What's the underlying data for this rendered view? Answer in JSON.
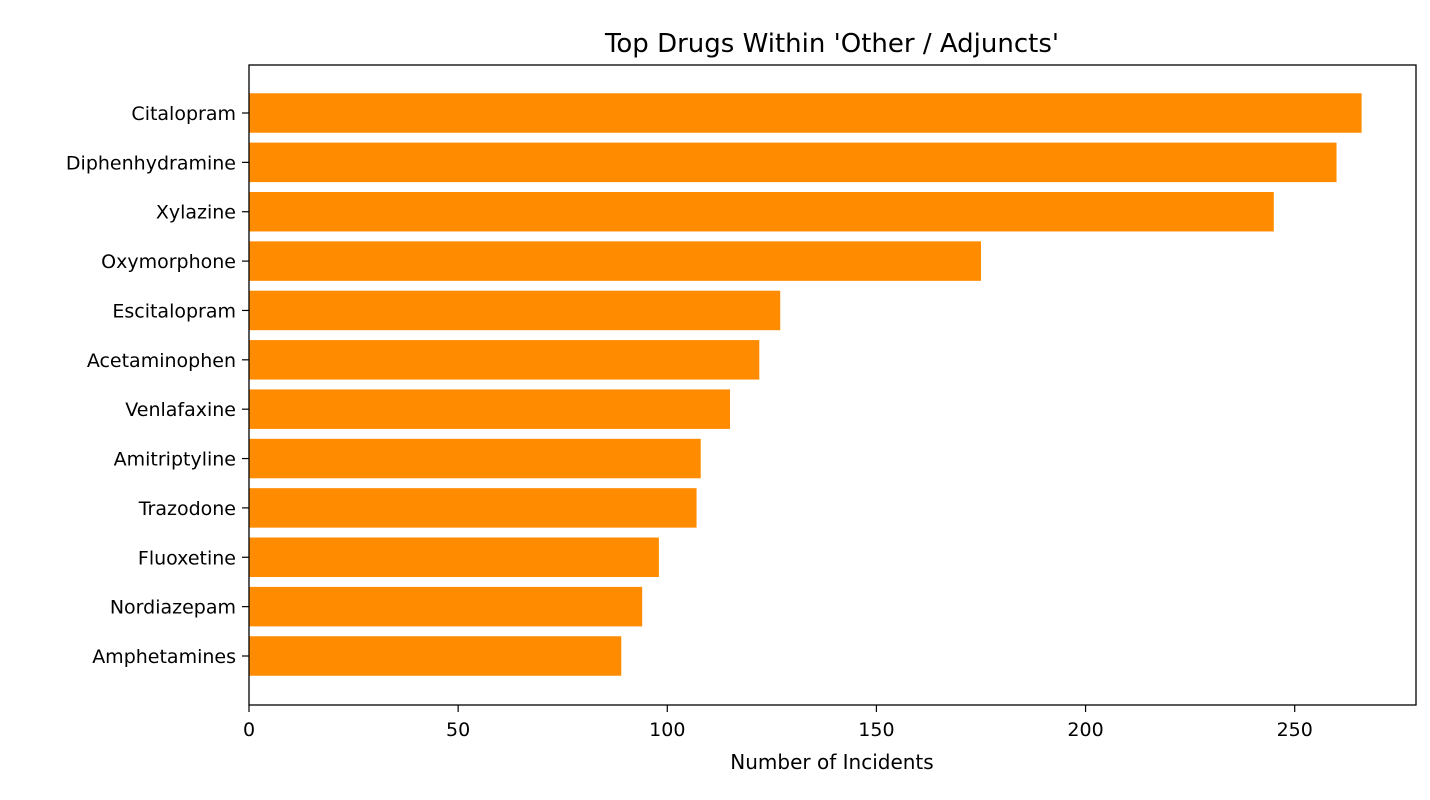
{
  "chart_data": {
    "type": "bar",
    "orientation": "horizontal",
    "title": "Top Drugs Within 'Other / Adjuncts'",
    "xlabel": "Number of Incidents",
    "ylabel": "",
    "categories": [
      "Citalopram",
      "Diphenhydramine",
      "Xylazine",
      "Oxymorphone",
      "Escitalopram",
      "Acetaminophen",
      "Venlafaxine",
      "Amitriptyline",
      "Trazodone",
      "Fluoxetine",
      "Nordiazepam",
      "Amphetamines"
    ],
    "values": [
      266,
      260,
      245,
      175,
      127,
      122,
      115,
      108,
      107,
      98,
      94,
      89
    ],
    "xlim": [
      0,
      279
    ],
    "xticks": [
      "0",
      "50",
      "100",
      "150",
      "200",
      "250"
    ],
    "bar_color": "#ff8c00",
    "grid": false
  }
}
